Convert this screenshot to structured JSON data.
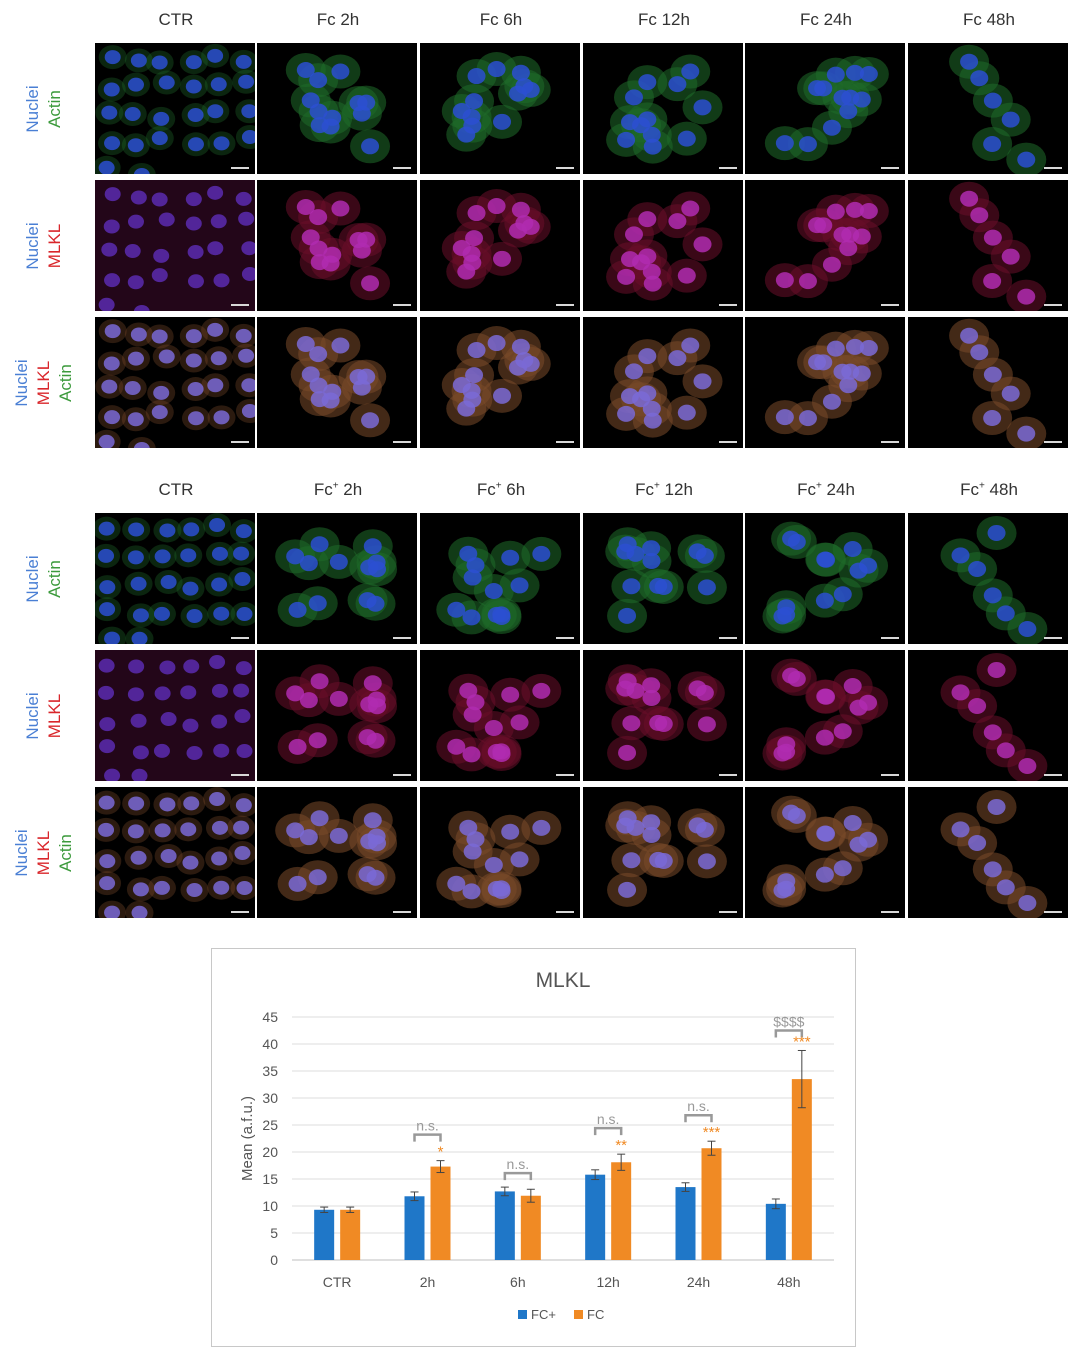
{
  "top": {
    "columns": [
      "CTR",
      "Fc 2h",
      "Fc 6h",
      "Fc 12h",
      "Fc 24h",
      "Fc 48h"
    ],
    "rows": [
      {
        "labels": [
          {
            "text": "Nuclei",
            "color": "blue"
          },
          {
            "text": "Actin",
            "color": "green"
          }
        ],
        "kind": "NA"
      },
      {
        "labels": [
          {
            "text": "Nuclei",
            "color": "blue"
          },
          {
            "text": "MLKL",
            "color": "red"
          }
        ],
        "kind": "NM"
      },
      {
        "labels": [
          {
            "text": "Nuclei",
            "color": "blue"
          },
          {
            "text": "MLKL",
            "color": "red"
          },
          {
            "text": "Actin",
            "color": "green"
          }
        ],
        "kind": "NMA"
      }
    ]
  },
  "bottom": {
    "columns": [
      {
        "base": "CTR",
        "sup": ""
      },
      {
        "base": "Fc",
        "sup": "+",
        "suffix": " 2h"
      },
      {
        "base": "Fc",
        "sup": "+",
        "suffix": " 6h"
      },
      {
        "base": "Fc",
        "sup": "+",
        "suffix": " 12h"
      },
      {
        "base": "Fc",
        "sup": "+",
        "suffix": " 24h"
      },
      {
        "base": "Fc",
        "sup": "+",
        "suffix": " 48h"
      }
    ],
    "rows": [
      {
        "labels": [
          {
            "text": "Nuclei",
            "color": "blue"
          },
          {
            "text": "Actin",
            "color": "green"
          }
        ],
        "kind": "NA"
      },
      {
        "labels": [
          {
            "text": "Nuclei",
            "color": "blue"
          },
          {
            "text": "MLKL",
            "color": "red"
          }
        ],
        "kind": "NM"
      },
      {
        "labels": [
          {
            "text": "Nuclei",
            "color": "blue"
          },
          {
            "text": "MLKL",
            "color": "red"
          },
          {
            "text": "Actin",
            "color": "green"
          }
        ],
        "kind": "NMA"
      }
    ]
  },
  "colors": {
    "blue": "#4a7fd4",
    "red": "#d9262b",
    "green": "#3c9a3c",
    "fcplus": "#1f77c8",
    "fc": "#f08a24",
    "sig_gray": "#999999"
  },
  "chart_data": {
    "type": "bar",
    "title": "MLKL",
    "ylabel": "Mean (a.f.u.)",
    "xlabel": "",
    "ylim": [
      0,
      45
    ],
    "yticks": [
      0,
      5,
      10,
      15,
      20,
      25,
      30,
      35,
      40,
      45
    ],
    "grid": true,
    "legend": "bottom",
    "categories": [
      "CTR",
      "2h",
      "6h",
      "12h",
      "24h",
      "48h"
    ],
    "series": [
      {
        "name": "FC+",
        "color": "#1f77c8",
        "values": [
          9.3,
          11.8,
          12.7,
          15.8,
          13.5,
          10.4
        ],
        "errors": [
          0.5,
          0.8,
          0.8,
          0.9,
          0.8,
          0.9
        ]
      },
      {
        "name": "FC",
        "color": "#f08a24",
        "values": [
          9.3,
          17.3,
          11.9,
          18.1,
          20.7,
          33.5
        ],
        "errors": [
          0.5,
          1.1,
          1.2,
          1.5,
          1.3,
          5.3
        ]
      }
    ],
    "annotations": [
      {
        "category": "2h",
        "bracket": "n.s.",
        "star": "*"
      },
      {
        "category": "6h",
        "bracket": "n.s.",
        "star": ""
      },
      {
        "category": "12h",
        "bracket": "n.s.",
        "star": "**"
      },
      {
        "category": "24h",
        "bracket": "n.s.",
        "star": "***"
      },
      {
        "category": "48h",
        "bracket": "$$$$",
        "star": "***"
      }
    ]
  }
}
